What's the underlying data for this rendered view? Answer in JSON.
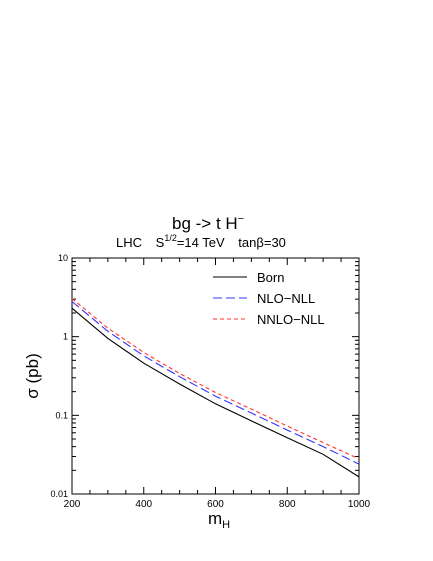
{
  "chart_data": {
    "type": "line",
    "title_main": "bg -> t H",
    "title_main_sup": "−",
    "subtitle": {
      "collider": "LHC",
      "energy_prefix": "S",
      "energy_sup": "1/2",
      "energy_suffix": "=14 TeV",
      "tanb": "tanβ=30"
    },
    "xlabel_main": "m",
    "xlabel_sub": "H",
    "ylabel": "σ (pb)",
    "xlim": [
      200,
      1000
    ],
    "ylim": [
      0.01,
      10
    ],
    "yscale": "log",
    "x_ticks": [
      200,
      400,
      600,
      800,
      1000
    ],
    "x_tick_labels": [
      "200",
      "400",
      "600",
      "800",
      "1000"
    ],
    "y_ticks": [
      0.01,
      0.1,
      1,
      10
    ],
    "y_tick_labels": [
      "0.01",
      "0.1",
      "1",
      "10"
    ],
    "legend_position": "top-right",
    "x": [
      200,
      300,
      400,
      500,
      600,
      700,
      800,
      900,
      1000
    ],
    "series": [
      {
        "name": "Born",
        "color": "#000000",
        "dash": "solid",
        "values": [
          2.3,
          0.95,
          0.46,
          0.25,
          0.14,
          0.085,
          0.052,
          0.032,
          0.0165
        ]
      },
      {
        "name": "NLO−NLL",
        "color": "#3333ff",
        "dash": "long-dash",
        "values": [
          2.8,
          1.17,
          0.57,
          0.31,
          0.175,
          0.107,
          0.065,
          0.04,
          0.024
        ]
      },
      {
        "name": "NNLO−NLL",
        "color": "#ff3333",
        "dash": "short-dash",
        "values": [
          3.05,
          1.28,
          0.63,
          0.34,
          0.195,
          0.12,
          0.073,
          0.045,
          0.028
        ]
      }
    ]
  }
}
